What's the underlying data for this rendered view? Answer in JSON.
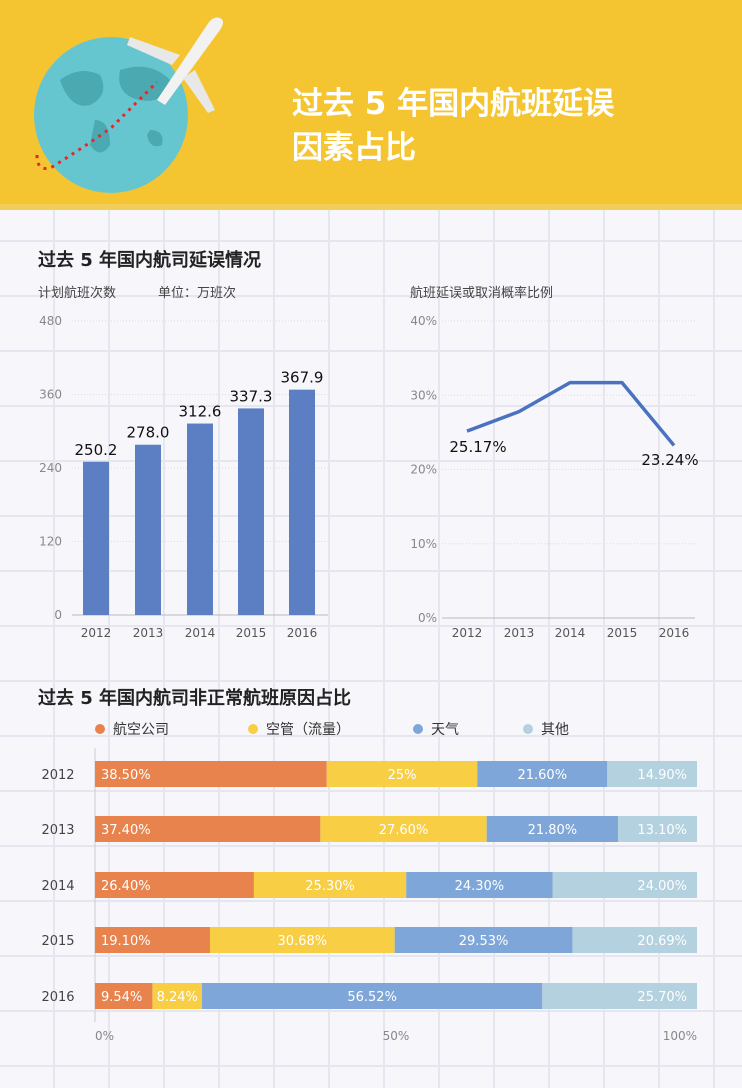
{
  "header": {
    "title_line1": "过去 5 年国内航班延误",
    "title_line2": "因素占比"
  },
  "section1": {
    "title": "过去 5 年国内航司延误情况",
    "bar_subtitle": "计划航班次数",
    "bar_unit": "单位：万班次",
    "line_subtitle": "航班延误或取消概率比例"
  },
  "section2": {
    "title": "过去 5 年国内航司非正常航班原因占比"
  },
  "colors": {
    "header": "#f5c531",
    "bar": "#5b7fc2",
    "line": "#4a72c0",
    "airline": "#e9834d",
    "atc": "#f8ce45",
    "weather": "#7ea6d8",
    "other": "#b3d1de"
  },
  "chart_data": [
    {
      "type": "bar",
      "categories": [
        "2012",
        "2013",
        "2014",
        "2015",
        "2016"
      ],
      "values": [
        250.2,
        278.0,
        312.6,
        337.3,
        367.9
      ],
      "labels": [
        "250.2",
        "278.0",
        "312.6",
        "337.3",
        "367.9"
      ],
      "ylim": [
        0,
        480
      ],
      "yticks": [
        "0",
        "120",
        "240",
        "360",
        "480"
      ]
    },
    {
      "type": "line",
      "categories": [
        "2012",
        "2013",
        "2014",
        "2015",
        "2016"
      ],
      "values": [
        25.17,
        27.8,
        31.7,
        31.7,
        23.24
      ],
      "labels": [
        "25.17%",
        "23.24%"
      ],
      "ylim": [
        0,
        40
      ],
      "yticks": [
        "0%",
        "10%",
        "20%",
        "30%",
        "40%"
      ]
    },
    {
      "type": "bar",
      "orientation": "horizontal-stacked",
      "categories": [
        "2012",
        "2013",
        "2014",
        "2015",
        "2016"
      ],
      "legend": [
        "航空公司",
        "空管（流量）",
        "天气",
        "其他"
      ],
      "series": [
        {
          "name": "航空公司",
          "values": [
            38.5,
            37.4,
            26.4,
            19.1,
            9.54
          ],
          "labels": [
            "38.50%",
            "37.40%",
            "26.40%",
            "19.10%",
            "9.54%"
          ]
        },
        {
          "name": "空管（流量）",
          "values": [
            25,
            27.6,
            25.3,
            30.68,
            8.24
          ],
          "labels": [
            "25%",
            "27.60%",
            "25.30%",
            "30.68%",
            "8.24%"
          ]
        },
        {
          "name": "天气",
          "values": [
            21.6,
            21.8,
            24.3,
            29.53,
            56.52
          ],
          "labels": [
            "21.60%",
            "21.80%",
            "24.30%",
            "29.53%",
            "56.52%"
          ]
        },
        {
          "name": "其他",
          "values": [
            14.9,
            13.1,
            24.0,
            20.69,
            25.7
          ],
          "labels": [
            "14.90%",
            "13.10%",
            "24.00%",
            "20.69%",
            "25.70%"
          ]
        }
      ],
      "xticks": [
        "0%",
        "50%",
        "100%"
      ]
    }
  ]
}
